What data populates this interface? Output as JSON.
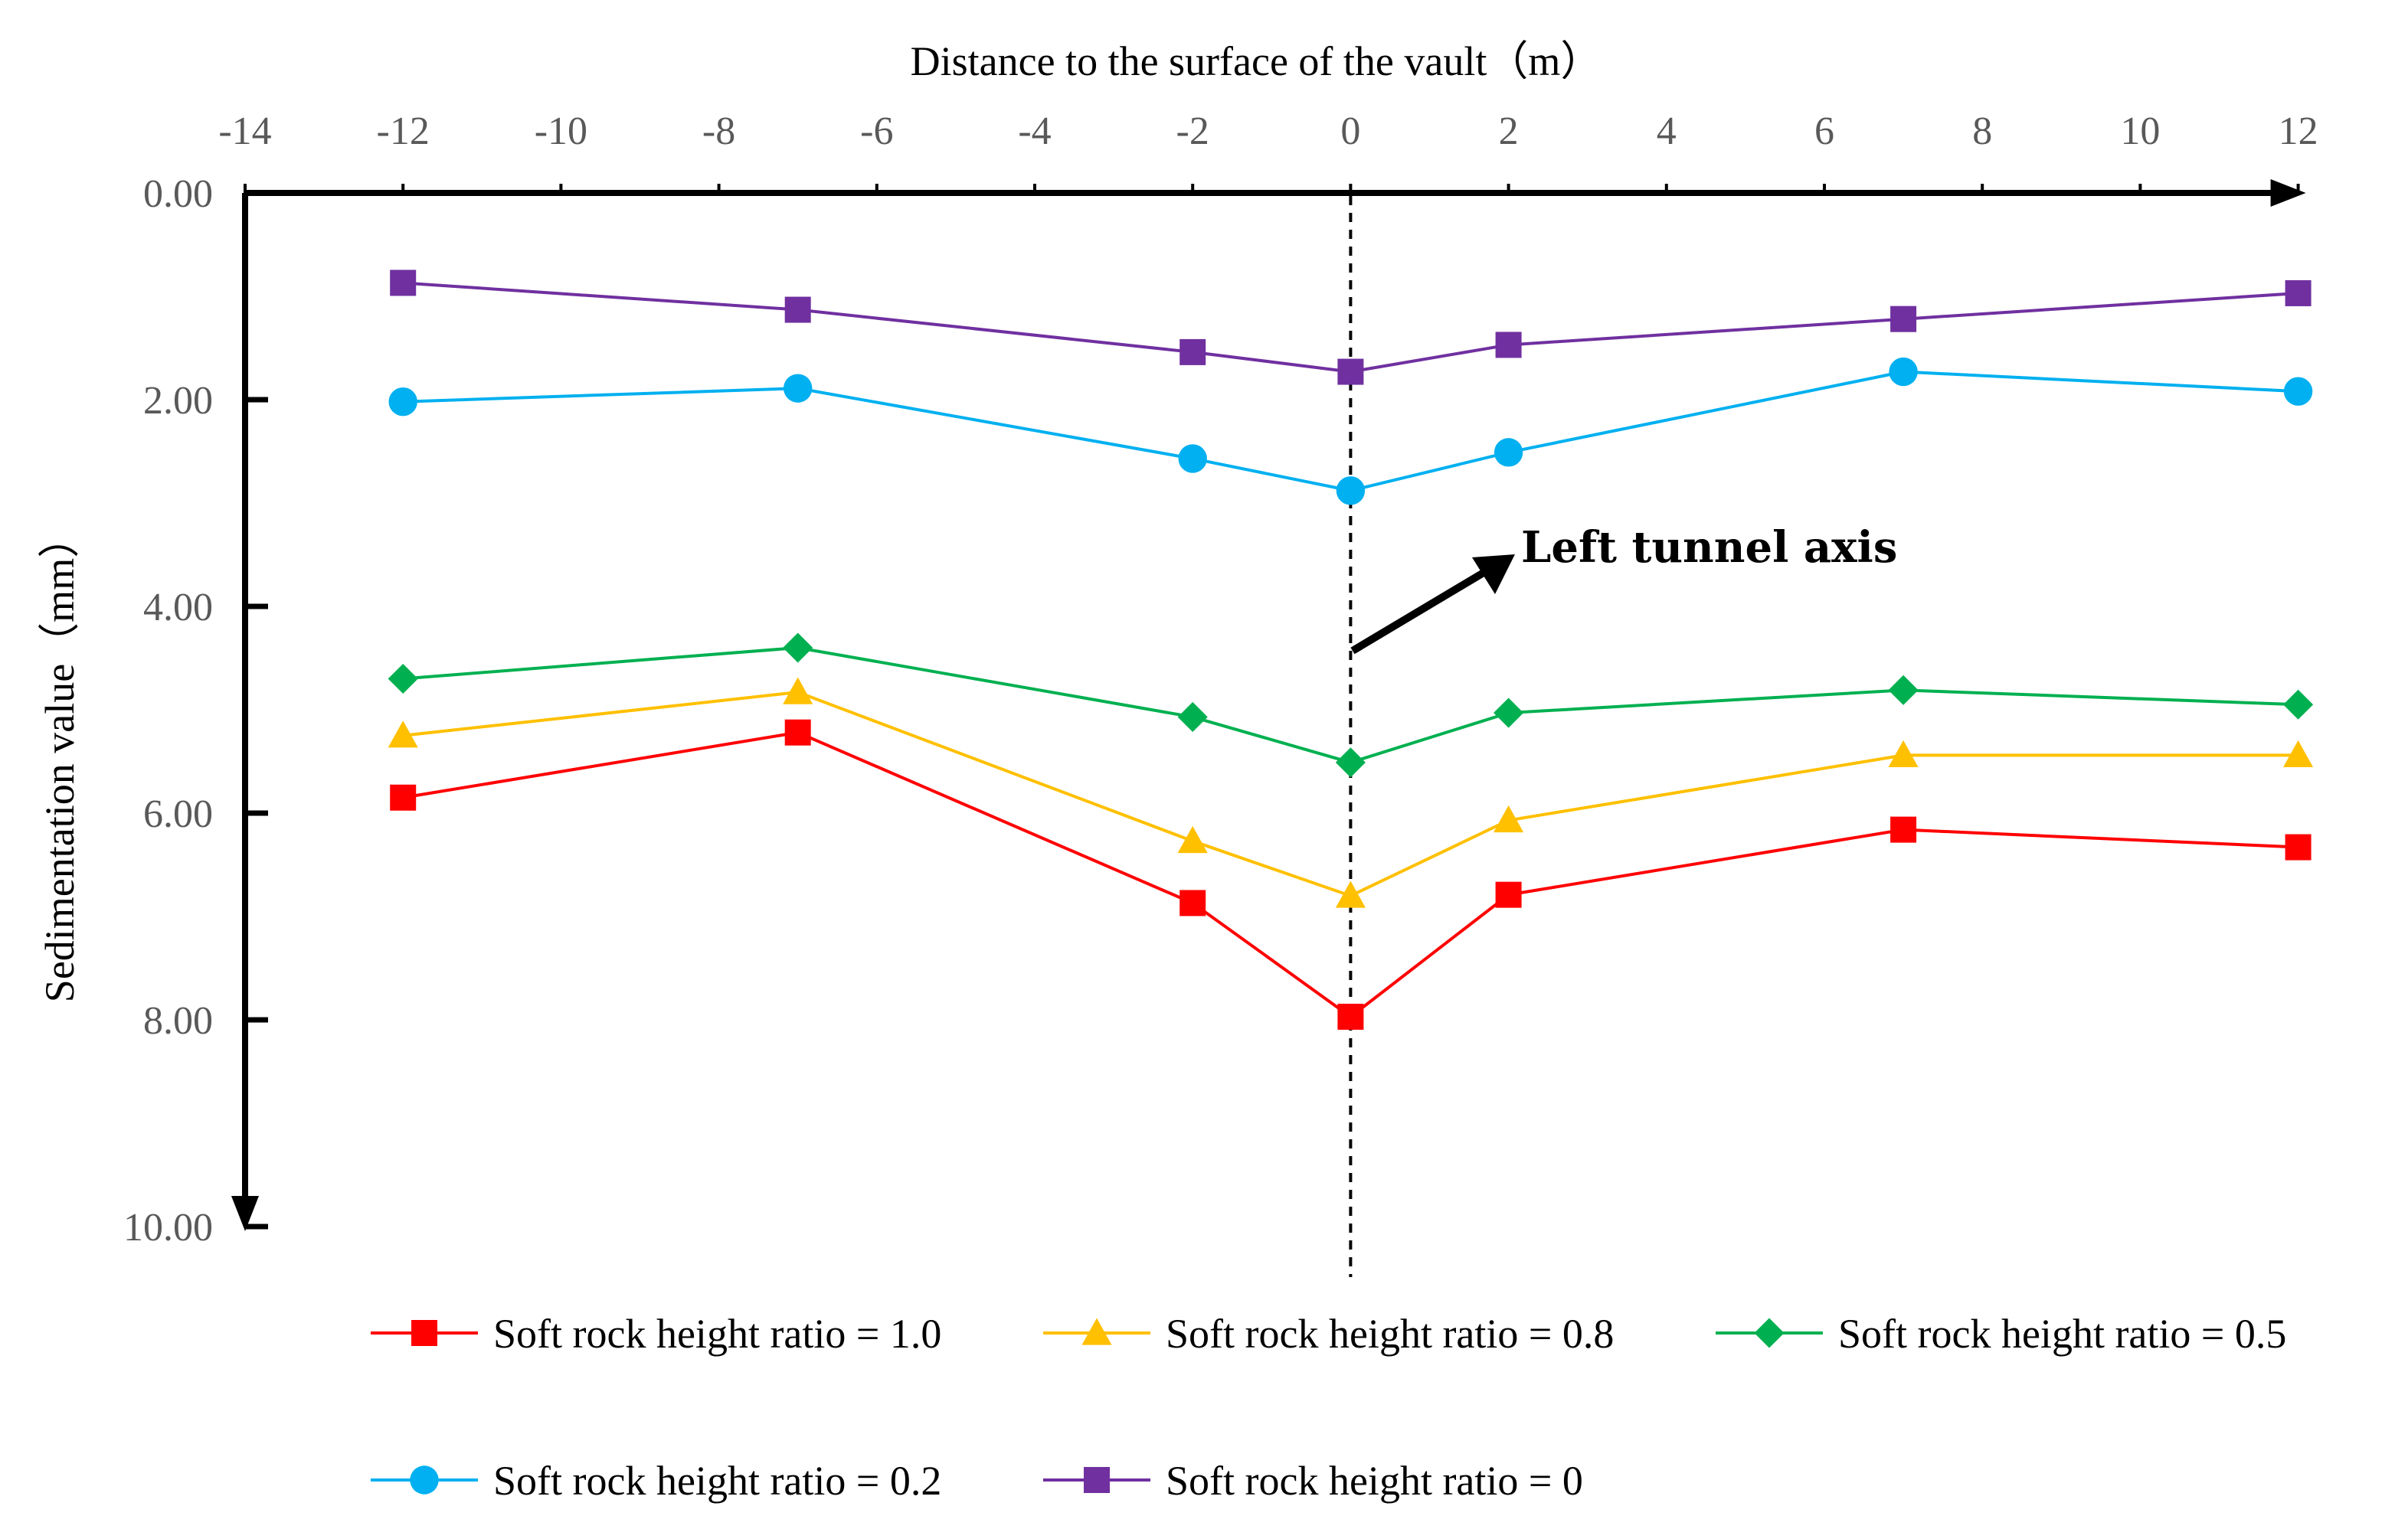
{
  "chart_data": {
    "type": "line",
    "xlabel": "Distance to the surface of the vault（m）",
    "ylabel": "Sedimentation value（mm）",
    "xlim": [
      -14,
      12
    ],
    "xticks": [
      -14,
      -12,
      -10,
      -8,
      -6,
      -4,
      -2,
      0,
      2,
      4,
      6,
      8,
      10,
      12
    ],
    "ylim": [
      0,
      10
    ],
    "yticks": [
      "0.00",
      "2.00",
      "4.00",
      "6.00",
      "8.00",
      "10.00"
    ],
    "x_axis_position": "top",
    "y_axis_inverted": true,
    "grid": false,
    "legend_position": "bottom",
    "annotation": {
      "text": "Left tunnel axis",
      "x": 0
    },
    "x": [
      -12,
      -7,
      -2,
      0,
      2,
      7,
      12
    ],
    "series": [
      {
        "name": "Soft rock height ratio = 1.0",
        "color": "#ff0000",
        "marker": "square",
        "values": [
          5.85,
          5.22,
          6.87,
          7.97,
          6.79,
          6.16,
          6.33
        ]
      },
      {
        "name": "Soft rock height ratio = 0.8",
        "color": "#ffc000",
        "marker": "triangle",
        "values": [
          5.25,
          4.83,
          6.27,
          6.8,
          6.07,
          5.44,
          5.44
        ]
      },
      {
        "name": "Soft rock height ratio = 0.5",
        "color": "#00b050",
        "marker": "diamond",
        "values": [
          4.7,
          4.4,
          5.07,
          5.51,
          5.03,
          4.81,
          4.95
        ]
      },
      {
        "name": "Soft rock height ratio = 0.2",
        "color": "#00b0f0",
        "marker": "circle",
        "values": [
          2.02,
          1.89,
          2.57,
          2.88,
          2.51,
          1.73,
          1.92
        ]
      },
      {
        "name": "Soft rock height ratio = 0",
        "color": "#7030a0",
        "marker": "square",
        "values": [
          0.87,
          1.13,
          1.54,
          1.73,
          1.47,
          1.22,
          0.97
        ]
      }
    ]
  }
}
